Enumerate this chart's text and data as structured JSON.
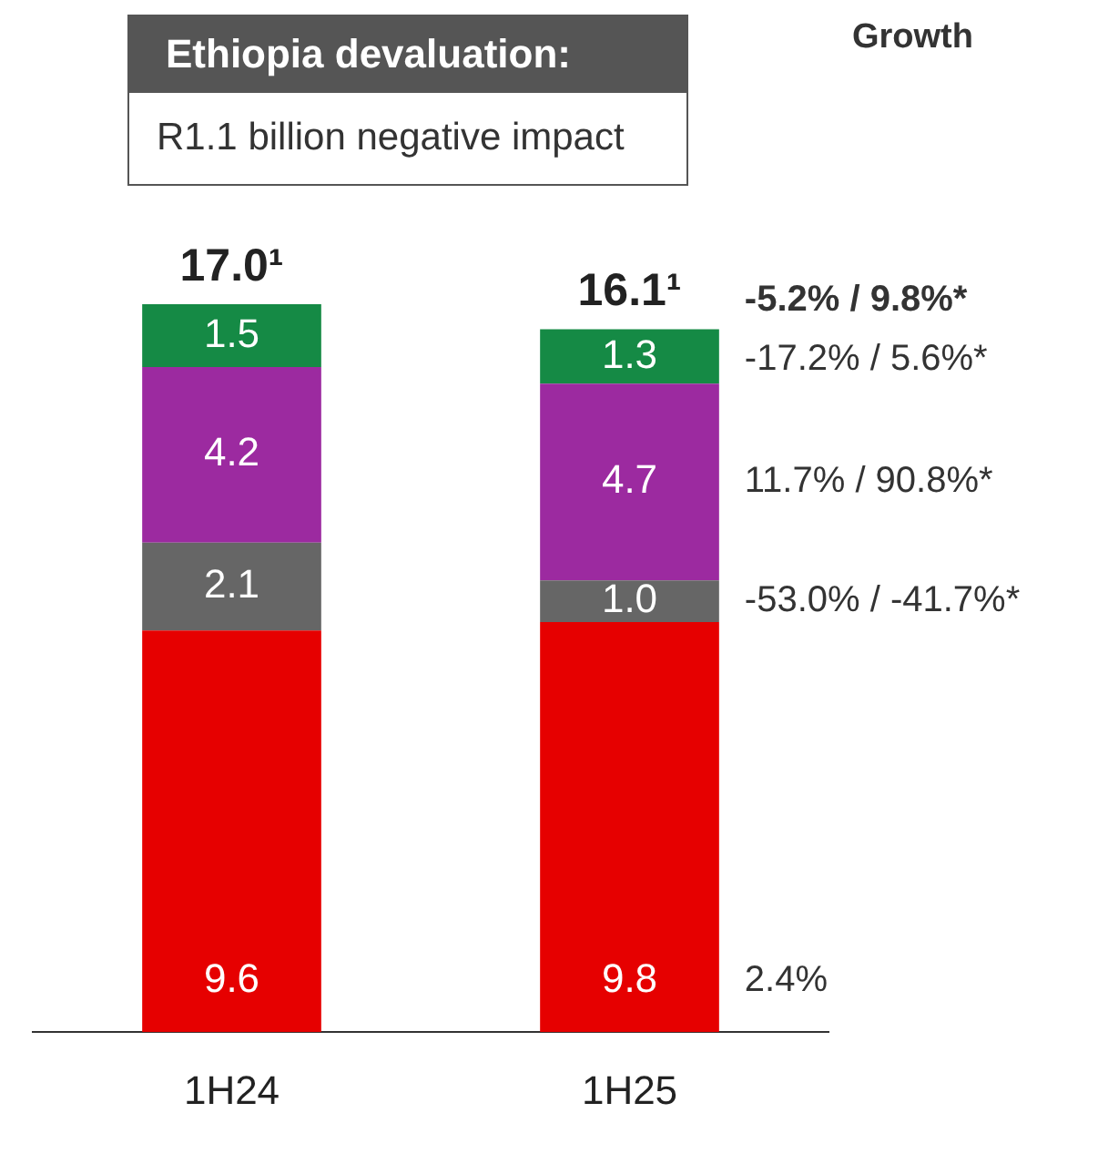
{
  "chart_data": {
    "type": "bar",
    "stacked": true,
    "categories": [
      "1H24",
      "1H25"
    ],
    "series": [
      {
        "color": "#e60000",
        "values": [
          9.6,
          9.8
        ],
        "value_labels": [
          "9.6",
          "9.8"
        ]
      },
      {
        "color": "#666666",
        "values": [
          2.1,
          1.0
        ],
        "value_labels": [
          "2.1",
          "1.0"
        ]
      },
      {
        "color": "#9c2aa0",
        "values": [
          4.2,
          4.7
        ],
        "value_labels": [
          "4.2",
          "4.7"
        ]
      },
      {
        "color": "#158a45",
        "values": [
          1.5,
          1.3
        ],
        "value_labels": [
          "1.5",
          "1.3"
        ]
      }
    ],
    "legend": false,
    "grid": false,
    "tick_labels": "x",
    "annotations": [
      "Ethiopia devaluation:",
      "R1.1 billion negative impact",
      "Growth",
      "17.0¹",
      "16.1¹",
      "-5.2% / 9.8%*",
      "-17.2% / 5.6%*",
      "11.7% / 90.8%*",
      "-53.0% / -41.7%*",
      "2.4%"
    ]
  }
}
